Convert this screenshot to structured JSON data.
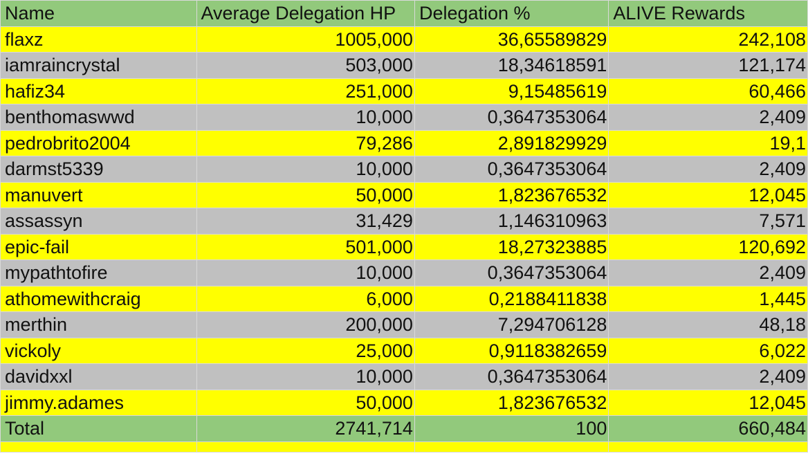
{
  "colors": {
    "header_bg": "#92c97c",
    "total_bg": "#92c97c",
    "odd_row_bg": "#ffff00",
    "even_row_bg": "#c0c0c0",
    "grid": "#d9d9d9"
  },
  "table": {
    "headers": [
      "Name",
      "Average Delegation HP",
      "Delegation %",
      "ALIVE Rewards"
    ],
    "rows": [
      [
        "flaxz",
        "1005,000",
        "36,65589829",
        "242,108"
      ],
      [
        "iamraincrystal",
        "503,000",
        "18,34618591",
        "121,174"
      ],
      [
        "hafiz34",
        "251,000",
        "9,15485619",
        "60,466"
      ],
      [
        "benthomaswwd",
        "10,000",
        "0,3647353064",
        "2,409"
      ],
      [
        "pedrobrito2004",
        "79,286",
        "2,891829929",
        "19,1"
      ],
      [
        "darmst5339",
        "10,000",
        "0,3647353064",
        "2,409"
      ],
      [
        "manuvert",
        "50,000",
        "1,823676532",
        "12,045"
      ],
      [
        "assassyn",
        "31,429",
        "1,146310963",
        "7,571"
      ],
      [
        "epic-fail",
        "501,000",
        "18,27323885",
        "120,692"
      ],
      [
        "mypathtofire",
        "10,000",
        "0,3647353064",
        "2,409"
      ],
      [
        "athomewithcraig",
        "6,000",
        "0,2188411838",
        "1,445"
      ],
      [
        "merthin",
        "200,000",
        "7,294706128",
        "48,18"
      ],
      [
        "vickoly",
        "25,000",
        "0,9118382659",
        "6,022"
      ],
      [
        "davidxxl",
        "10,000",
        "0,3647353064",
        "2,409"
      ],
      [
        "jimmy.adames",
        "50,000",
        "1,823676532",
        "12,045"
      ]
    ],
    "total": [
      "Total",
      "2741,714",
      "100",
      "660,484"
    ]
  }
}
